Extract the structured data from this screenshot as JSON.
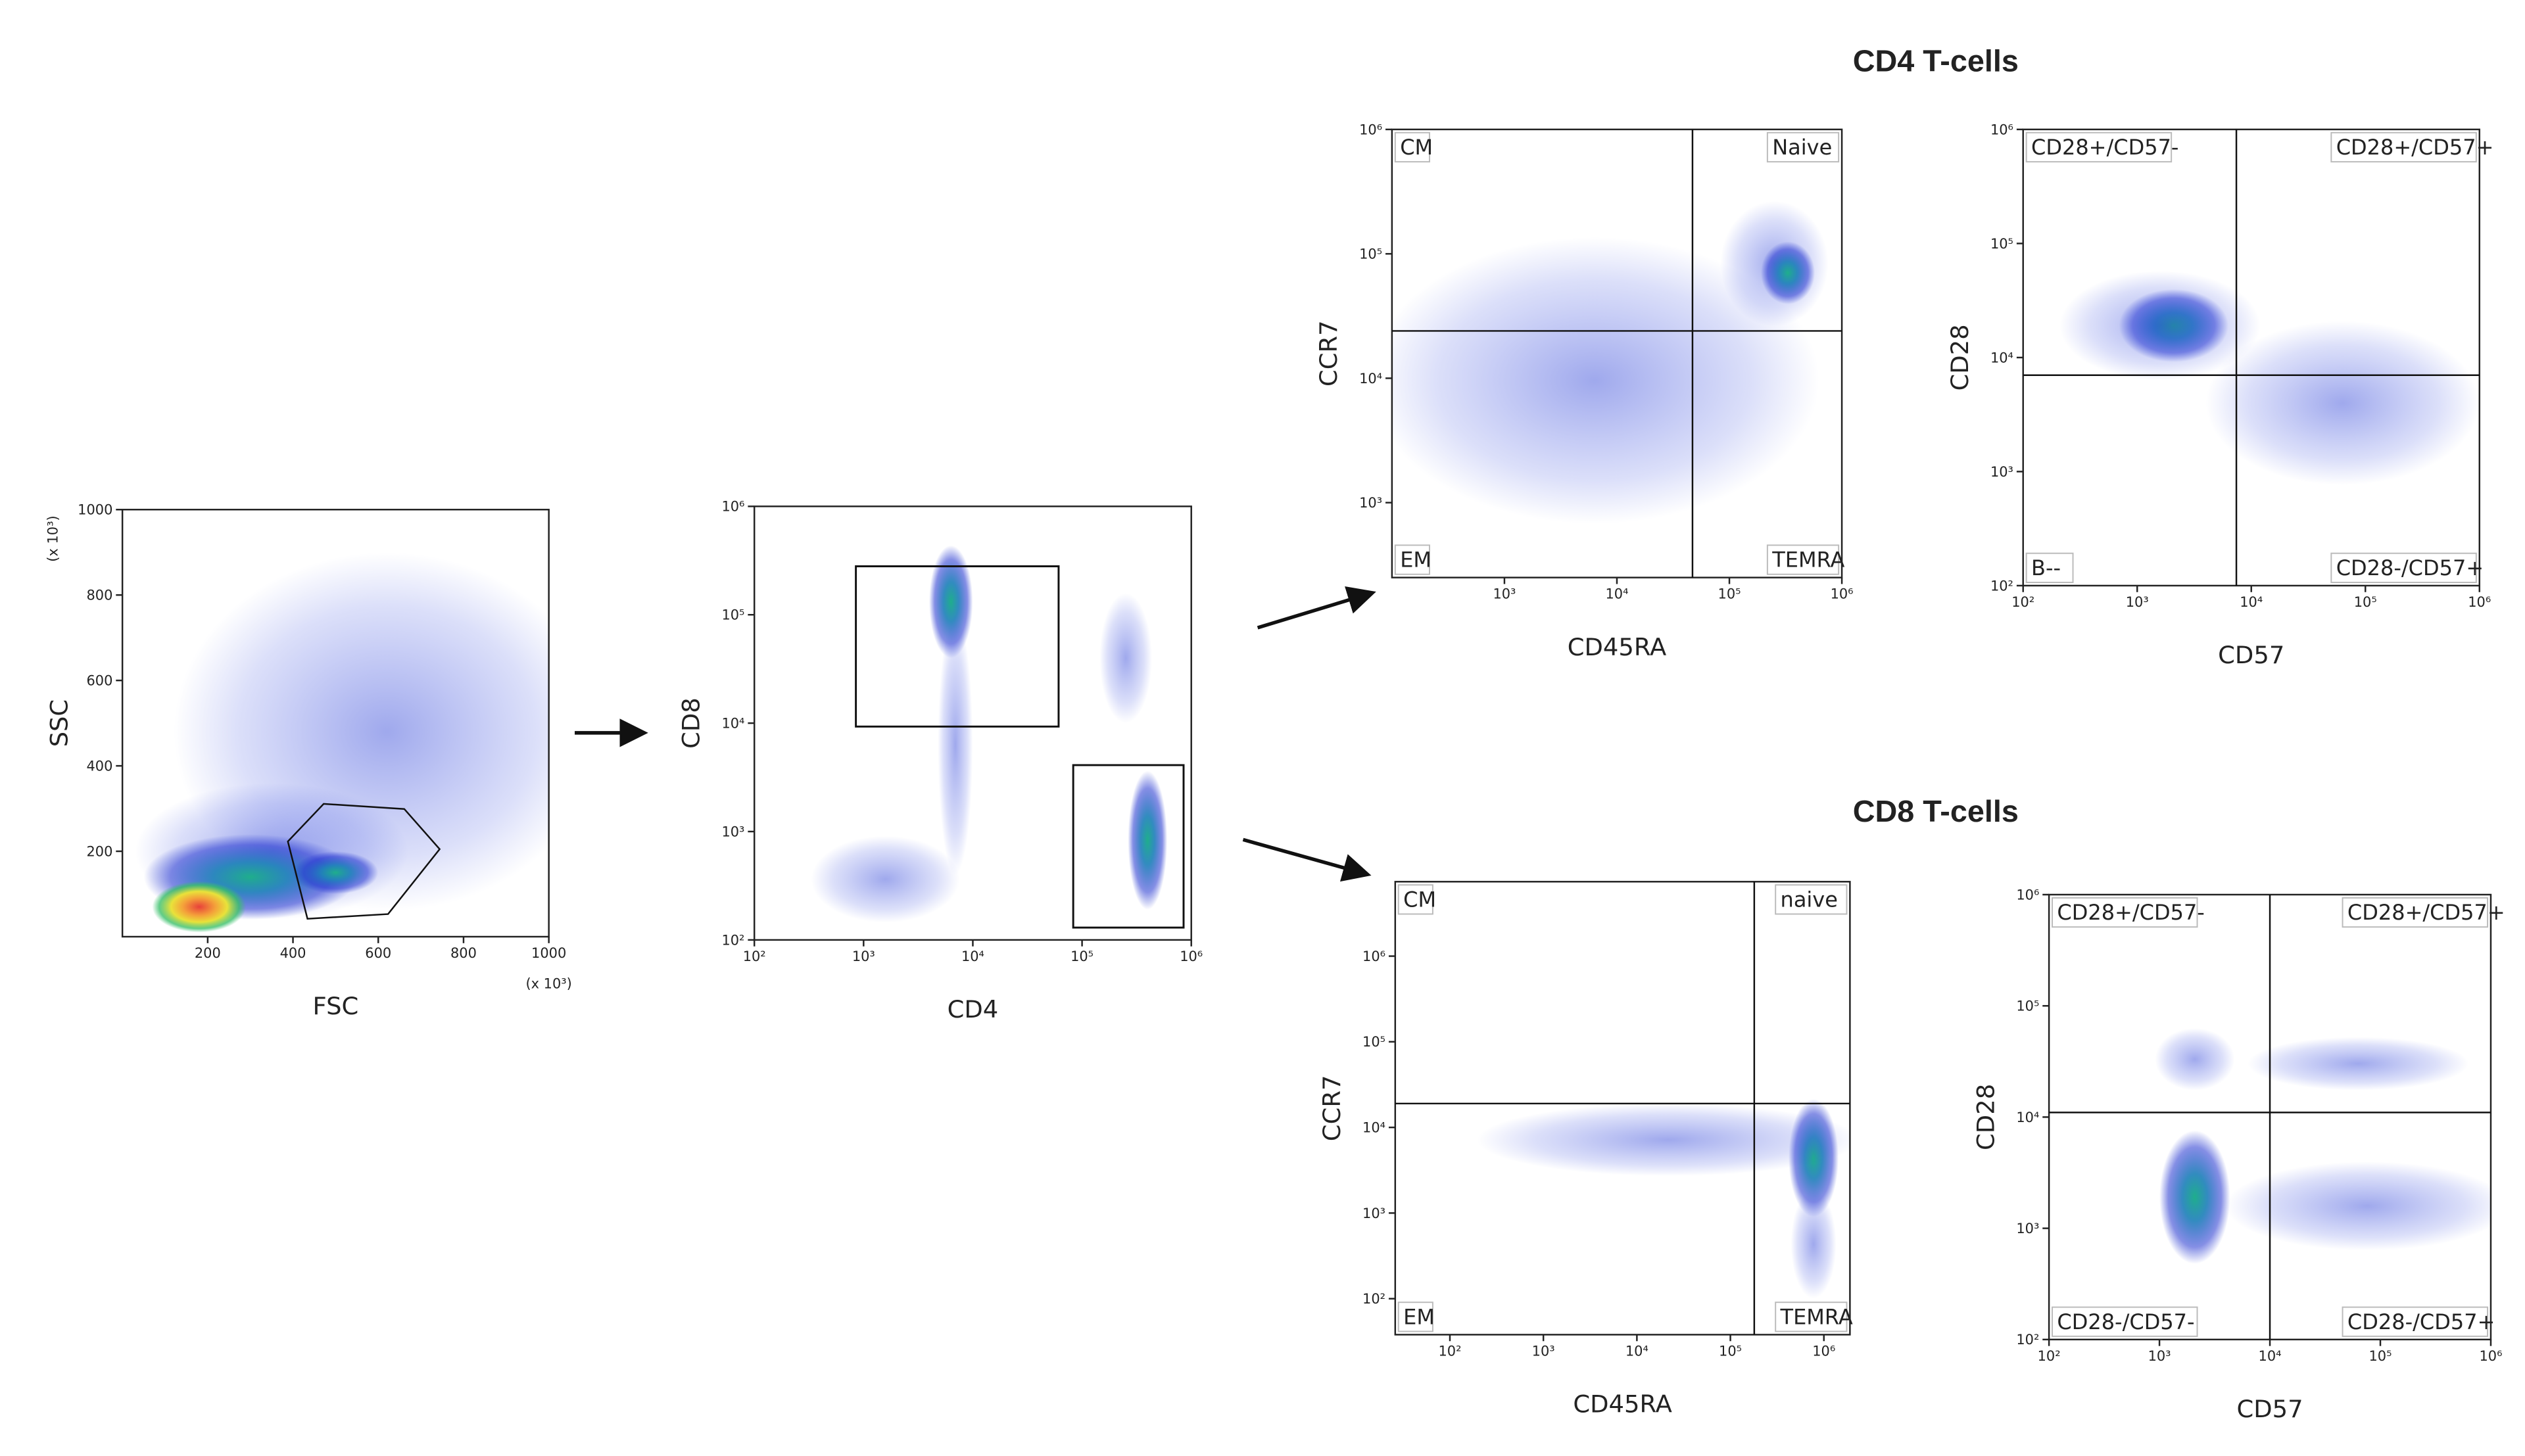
{
  "chart_data": [
    {
      "type": "scatter",
      "x_label": "FSC",
      "y_label": "SSC",
      "x_unit": "(x 10³)",
      "y_unit": "(x 10³)",
      "xlim": [
        0,
        1000
      ],
      "ylim": [
        0,
        1000
      ],
      "xticks": [
        200,
        400,
        600,
        800,
        1000
      ],
      "yticks": [
        200,
        400,
        600,
        800,
        1000
      ],
      "gate_polygon": {
        "x": [
          388,
          472,
          661,
          744,
          623,
          434
        ],
        "y": [
          223,
          311,
          299,
          205,
          53,
          42
        ]
      }
    },
    {
      "type": "scatter",
      "x_label": "CD4",
      "y_label": "CD8",
      "log_scale": true,
      "xlim": [
        100,
        1000000
      ],
      "ylim": [
        100,
        1000000
      ],
      "xticks": [
        {
          "value": 100,
          "label": "10²"
        },
        {
          "value": 1000,
          "label": "10³"
        },
        {
          "value": 10000,
          "label": "10⁴"
        },
        {
          "value": 100000,
          "label": "10⁵"
        },
        {
          "value": 1000000,
          "label": "10⁶"
        }
      ],
      "yticks": [
        {
          "value": 100,
          "label": "10²"
        },
        {
          "value": 1000,
          "label": "10³"
        },
        {
          "value": 10000,
          "label": "10⁴"
        },
        {
          "value": 100000,
          "label": "10⁵"
        },
        {
          "value": 1000000,
          "label": "10⁶"
        }
      ],
      "gates": [
        {
          "x": [
            850,
            61000
          ],
          "y": [
            9300,
            280000
          ]
        },
        {
          "x": [
            83000,
            850000
          ],
          "y": [
            130,
            4100
          ]
        }
      ]
    },
    {
      "type": "scatter",
      "title": "CD4 T-cells",
      "x_label": "CD45RA",
      "y_label": "CCR7",
      "log_scale": true,
      "xlim": [
        100,
        1000000
      ],
      "ylim": [
        250,
        1000000
      ],
      "xticks": [
        {
          "value": 1000,
          "label": "10³"
        },
        {
          "value": 10000,
          "label": "10⁴"
        },
        {
          "value": 100000,
          "label": "10⁵"
        },
        {
          "value": 1000000,
          "label": "10⁶"
        }
      ],
      "yticks": [
        {
          "value": 1000,
          "label": "10³"
        },
        {
          "value": 10000,
          "label": "10⁴"
        },
        {
          "value": 100000,
          "label": "10⁵"
        },
        {
          "value": 1000000,
          "label": "10⁶"
        }
      ],
      "quadrant": {
        "x": 47000,
        "y": 24000
      },
      "quadrant_labels": [
        "CM",
        "Naive",
        "EM",
        "TEMRA"
      ]
    },
    {
      "type": "scatter",
      "x_label": "CD57",
      "y_label": "CD28",
      "log_scale": true,
      "xlim": [
        100,
        1000000
      ],
      "ylim": [
        100,
        1000000
      ],
      "xticks": [
        {
          "value": 100,
          "label": "10²"
        },
        {
          "value": 1000,
          "label": "10³"
        },
        {
          "value": 10000,
          "label": "10⁴"
        },
        {
          "value": 100000,
          "label": "10⁵"
        },
        {
          "value": 1000000,
          "label": "10⁶"
        }
      ],
      "yticks": [
        {
          "value": 100,
          "label": "10²"
        },
        {
          "value": 1000,
          "label": "10³"
        },
        {
          "value": 10000,
          "label": "10⁴"
        },
        {
          "value": 100000,
          "label": "10⁵"
        },
        {
          "value": 1000000,
          "label": "10⁶"
        }
      ],
      "quadrant": {
        "x": 7400,
        "y": 7000
      },
      "quadrant_labels": [
        "CD28+/CD57-",
        "CD28+/CD57+",
        "B--",
        "CD28-/CD57+"
      ]
    },
    {
      "type": "scatter",
      "title": "CD8 T-cells",
      "x_label": "CD45RA",
      "y_label": "CCR7",
      "log_scale": true,
      "xlim": [
        26,
        1900000
      ],
      "ylim": [
        38,
        7400000
      ],
      "xticks": [
        {
          "value": 100,
          "label": "10²"
        },
        {
          "value": 1000,
          "label": "10³"
        },
        {
          "value": 10000,
          "label": "10⁴"
        },
        {
          "value": 100000,
          "label": "10⁵"
        },
        {
          "value": 1000000,
          "label": "10⁶"
        }
      ],
      "yticks": [
        {
          "value": 100,
          "label": "10²"
        },
        {
          "value": 1000,
          "label": "10³"
        },
        {
          "value": 10000,
          "label": "10⁴"
        },
        {
          "value": 100000,
          "label": "10⁵"
        },
        {
          "value": 1000000,
          "label": "10⁶"
        }
      ],
      "quadrant": {
        "x": 180000,
        "y": 19000
      },
      "quadrant_labels": [
        "CM",
        "naive",
        "EM",
        "TEMRA"
      ]
    },
    {
      "type": "scatter",
      "x_label": "CD57",
      "y_label": "CD28",
      "log_scale": true,
      "xlim": [
        100,
        1000000
      ],
      "ylim": [
        100,
        1000000
      ],
      "xticks": [
        {
          "value": 100,
          "label": "10²"
        },
        {
          "value": 1000,
          "label": "10³"
        },
        {
          "value": 10000,
          "label": "10⁴"
        },
        {
          "value": 100000,
          "label": "10⁵"
        },
        {
          "value": 1000000,
          "label": "10⁶"
        }
      ],
      "yticks": [
        {
          "value": 100,
          "label": "10²"
        },
        {
          "value": 1000,
          "label": "10³"
        },
        {
          "value": 10000,
          "label": "10⁴"
        },
        {
          "value": 100000,
          "label": "10⁵"
        },
        {
          "value": 1000000,
          "label": "10⁶"
        }
      ],
      "quadrant": {
        "x": 10000,
        "y": 11000
      },
      "quadrant_labels": [
        "CD28+/CD57-",
        "CD28+/CD57+",
        "CD28-/CD57-",
        "CD28-/CD57+"
      ]
    }
  ]
}
